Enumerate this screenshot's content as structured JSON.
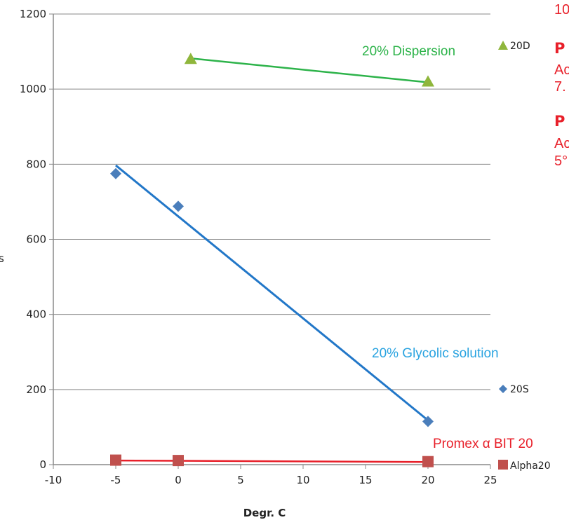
{
  "chart_data": {
    "type": "scatter",
    "title": "",
    "xlabel": "Degr. C",
    "ylabel": "",
    "xlim": [
      -10,
      25
    ],
    "ylim": [
      0,
      1200
    ],
    "x_ticks": [
      "-10",
      "-5",
      "0",
      "5",
      "10",
      "15",
      "20",
      "25"
    ],
    "y_ticks": [
      "0",
      "200",
      "400",
      "600",
      "800",
      "1000",
      "1200"
    ],
    "grid": "horizontal",
    "series": [
      {
        "name": "20D",
        "marker": "triangle",
        "color": "#8fb63c",
        "trend_color": "#2db34a",
        "points": [
          {
            "x": 1,
            "y": 1080
          },
          {
            "x": 20,
            "y": 1020
          }
        ],
        "trend": [
          {
            "x": 1,
            "y": 1082
          },
          {
            "x": 20,
            "y": 1018
          }
        ]
      },
      {
        "name": "20S",
        "marker": "diamond",
        "color": "#4a7ebb",
        "trend_color": "#2277c8",
        "points": [
          {
            "x": -5,
            "y": 775
          },
          {
            "x": 0,
            "y": 688
          },
          {
            "x": 20,
            "y": 115
          }
        ],
        "trend": [
          {
            "x": -5,
            "y": 797
          },
          {
            "x": 20,
            "y": 118
          }
        ]
      },
      {
        "name": "Alpha20",
        "marker": "square",
        "color": "#c0504d",
        "trend_color": "#e8202a",
        "points": [
          {
            "x": -5,
            "y": 12
          },
          {
            "x": 0,
            "y": 11
          },
          {
            "x": 20,
            "y": 8
          }
        ],
        "trend": [
          {
            "x": -5,
            "y": 11
          },
          {
            "x": 20,
            "y": 7
          }
        ]
      }
    ],
    "annotations": [
      {
        "text": "20% Dispersion",
        "color": "#2db34a"
      },
      {
        "text": "20% Glycolic solution",
        "color": "#29a3e0"
      },
      {
        "text": "Promex α BIT 20",
        "color": "#e8202a"
      }
    ],
    "legend_position": "right",
    "y_axis_fragment": "s"
  },
  "side_text": {
    "line1": "10",
    "heading1": "P",
    "line2": "Ac",
    "line3": "7.",
    "heading2": "P",
    "line4": "Ac",
    "line5": "5°"
  }
}
